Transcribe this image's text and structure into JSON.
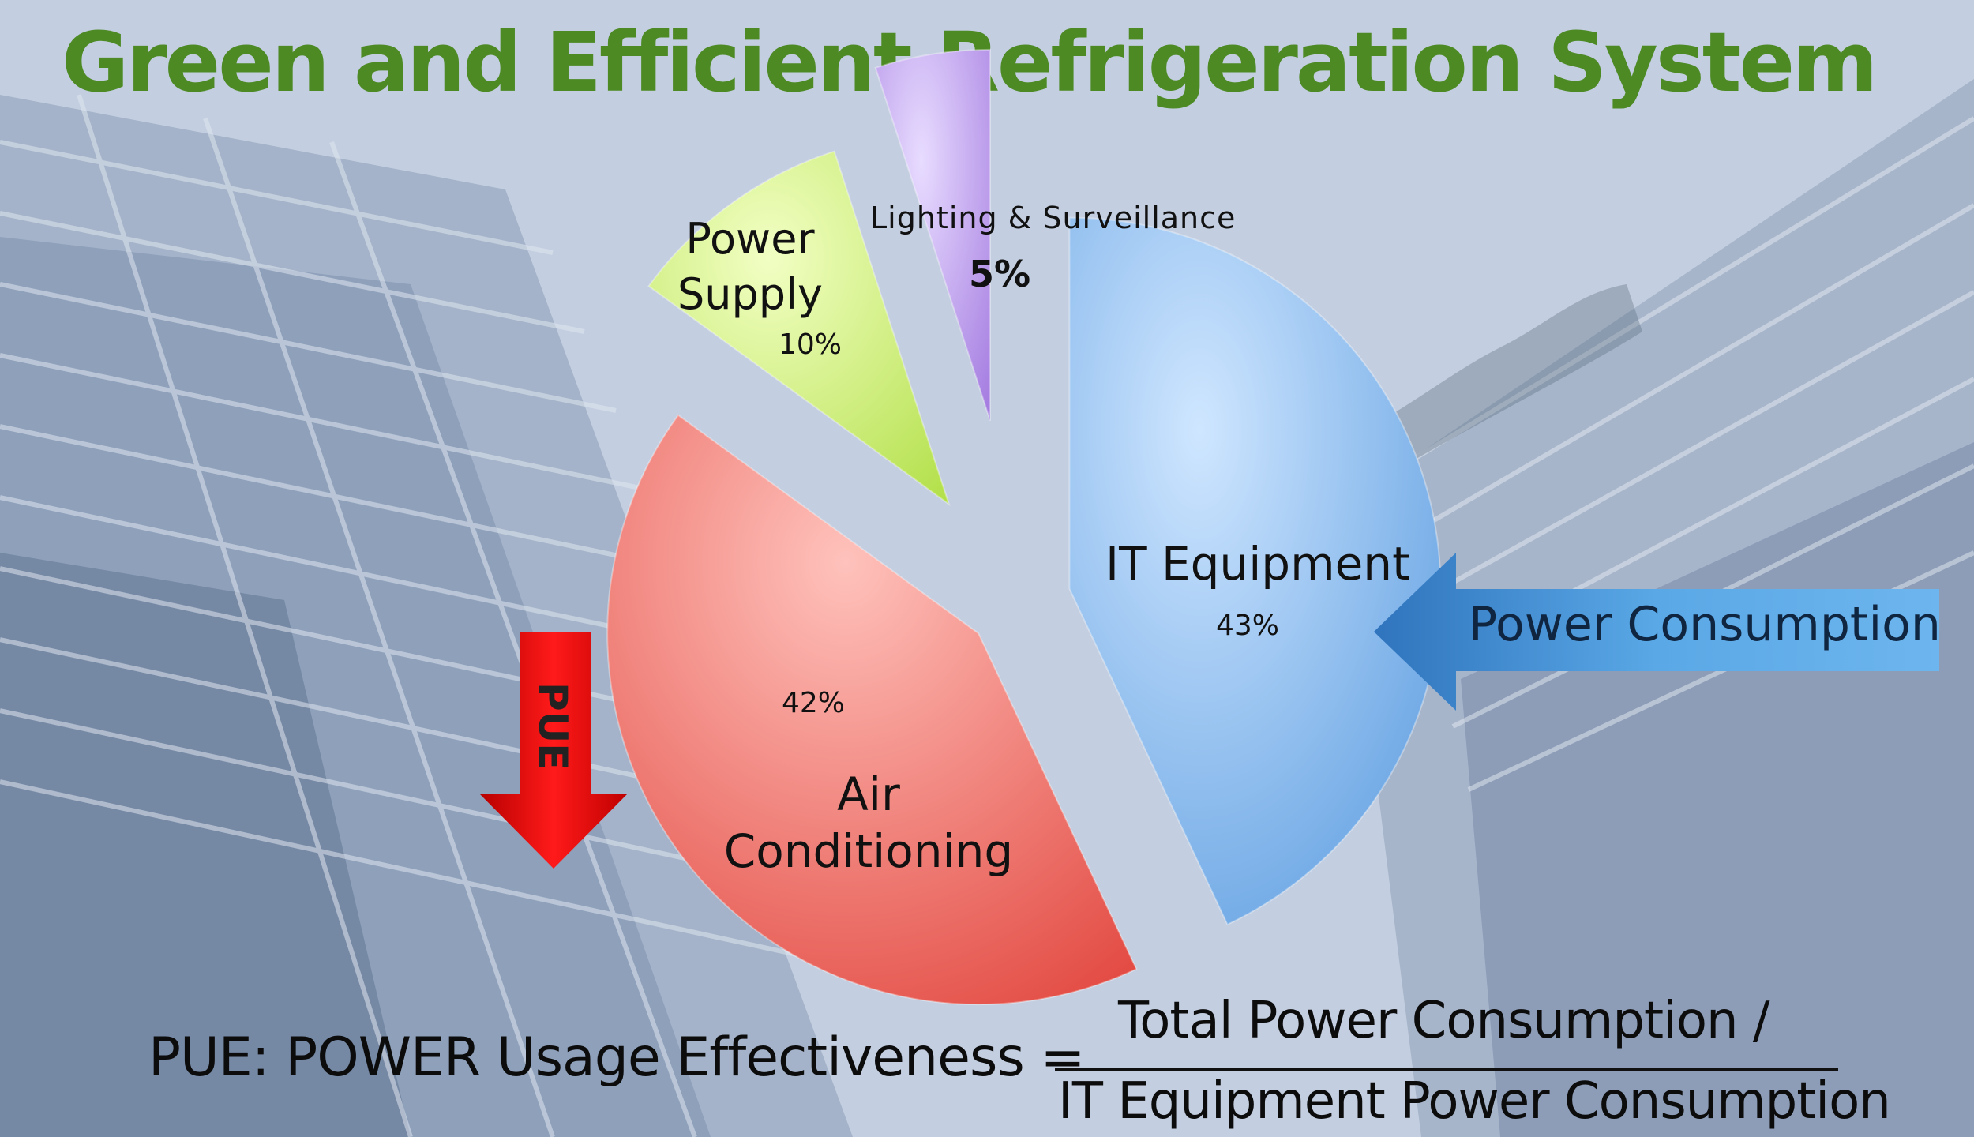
{
  "title": "Green and Efficient Refrigeration System",
  "colors": {
    "title": "#4d8a24",
    "it_equipment": "#8fc0f2",
    "air_conditioning": "#f2847d",
    "power_supply": "#d9f28a",
    "lighting": "#c9aef0",
    "pue_arrow": "#e00000",
    "consumption_arrow": "#4a95d6"
  },
  "arrows": {
    "pue_label": "PUE",
    "power_consumption_label": "Power Consumption"
  },
  "formula": {
    "left": "PUE: POWER Usage Effectiveness =",
    "numerator": "Total Power Consumption /",
    "denominator": "IT Equipment Power Consumption"
  },
  "chart_data": {
    "type": "pie",
    "exploded": true,
    "slices": [
      {
        "label": "IT Equipment",
        "value": 43,
        "value_label": "43%",
        "color": "#8fc0f2"
      },
      {
        "label": "Air Conditioning",
        "value": 42,
        "value_label": "42%",
        "color": "#f2847d"
      },
      {
        "label": "Power Supply",
        "value": 10,
        "value_label": "10%",
        "color": "#d9f28a"
      },
      {
        "label": "Lighting & Surveillance",
        "value": 5,
        "value_label": "5%",
        "color": "#c9aef0"
      }
    ]
  }
}
